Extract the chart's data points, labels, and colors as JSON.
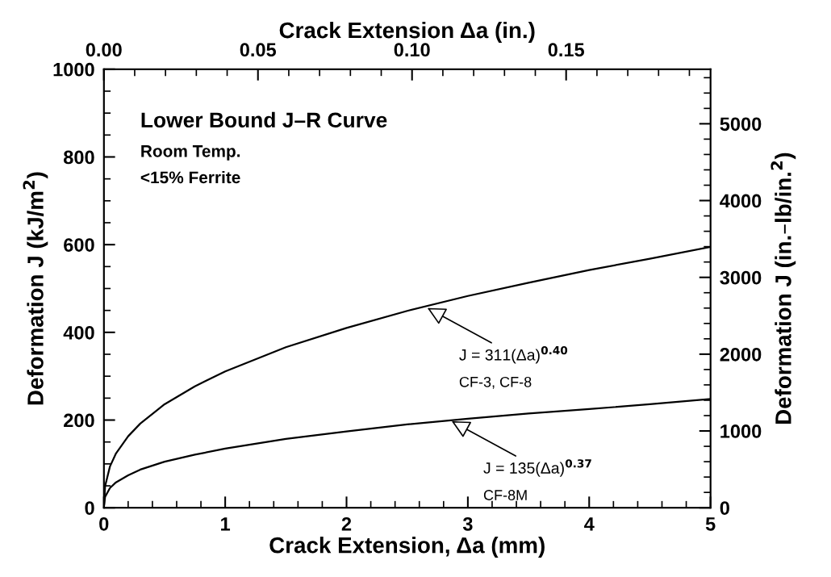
{
  "chart_data": {
    "type": "line",
    "xlabel": "Crack Extension, Δa (mm)",
    "x2label": "Crack Extension Δa (in.)",
    "ylabel": "Deformation J (kJ/m$^{2}$)",
    "y2label": "Deformation J (in.–lb/in.$^{2}$)",
    "xlim": [
      0,
      5
    ],
    "xticks": [
      0,
      1,
      2,
      3,
      4,
      5
    ],
    "ylim": [
      0,
      1000
    ],
    "yticks": [
      0,
      200,
      400,
      600,
      800,
      1000
    ],
    "x2lim": [
      0,
      0.19685
    ],
    "x2ticks": [
      {
        "value": 0,
        "label": "0.00"
      },
      {
        "value": 0.05,
        "label": "0.05"
      },
      {
        "value": 0.1,
        "label": "0.10"
      },
      {
        "value": 0.15,
        "label": "0.15"
      }
    ],
    "y2lim": [
      0,
      5710
    ],
    "y2ticks": [
      0,
      1000,
      2000,
      3000,
      4000,
      5000
    ],
    "x": [
      0,
      0.01,
      0.05,
      0.1,
      0.2,
      0.3,
      0.5,
      0.75,
      1,
      1.5,
      2,
      2.5,
      3,
      3.5,
      4,
      4.5,
      5
    ],
    "series": [
      {
        "color": "#000000",
        "values": [
          0,
          49,
          94,
          124,
          163,
          192,
          236,
          277,
          311,
          366,
          410,
          449,
          483,
          513,
          542,
          568,
          595
        ]
      },
      {
        "color": "#000000",
        "values": [
          0,
          25,
          45,
          58,
          74,
          87,
          105,
          121,
          135,
          157,
          174,
          190,
          203,
          215,
          225,
          236,
          248
        ]
      }
    ],
    "annotations": [
      "Lower Bound J–R Curve",
      "Room Temp.",
      "<15% Ferrite",
      {
        "text": "J = 311(Δa)$^{0.40}$",
        "x": 2.65,
        "y": 458
      },
      "CF-3, CF-8",
      {
        "text": "J = 135(Δa)$^{0.37}$",
        "x": 2.85,
        "y": 200
      },
      "CF-8M"
    ],
    "grid": false,
    "legend": false,
    "marker": "none",
    "line_style": "solid"
  }
}
